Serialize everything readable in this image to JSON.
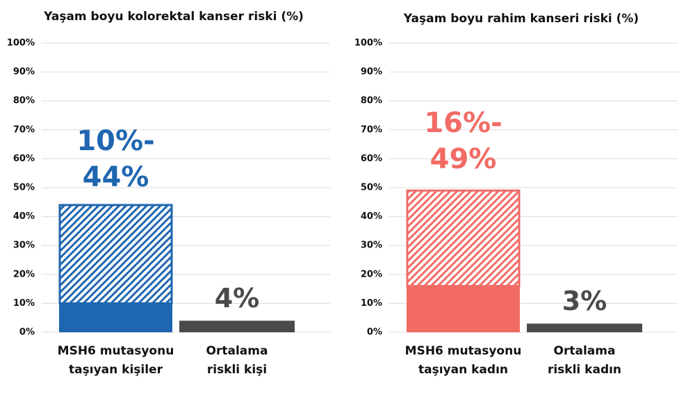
{
  "chart_data": [
    {
      "type": "range-bar",
      "title": "Yaşam boyu kolorektal kanser riski (%)",
      "categories": [
        [
          "MSH6 mutasyonu",
          "taşıyan kişiler"
        ],
        [
          "Ortalama",
          "riskli kişi"
        ]
      ],
      "values": [
        [
          10,
          44
        ],
        4
      ],
      "value_labels": [
        [
          "10%-",
          "44%"
        ],
        "4%"
      ],
      "colors": [
        "#1f66b0",
        "#4a4a4a"
      ],
      "ylim": [
        0,
        100
      ],
      "yticks": [
        {
          "value": 0,
          "label": "0%"
        },
        {
          "value": 10,
          "label": "10%"
        },
        {
          "value": 20,
          "label": "20%"
        },
        {
          "value": 30,
          "label": "30%"
        },
        {
          "value": 40,
          "label": "40%"
        },
        {
          "value": 50,
          "label": "50%"
        },
        {
          "value": 60,
          "label": "60%"
        },
        {
          "value": 70,
          "label": "70%"
        },
        {
          "value": 80,
          "label": "80%"
        },
        {
          "value": 90,
          "label": "90%"
        },
        {
          "value": 100,
          "label": "100%"
        }
      ],
      "grid": true
    },
    {
      "type": "range-bar",
      "title": "Yaşam boyu rahim kanseri riski (%)",
      "categories": [
        [
          "MSH6 mutasyonu",
          "taşıyan kadın"
        ],
        [
          "Ortalama",
          "riskli kadın"
        ]
      ],
      "values": [
        [
          16,
          49
        ],
        3
      ],
      "value_labels": [
        [
          "16%-",
          "49%"
        ],
        "3%"
      ],
      "colors": [
        "#f26b65",
        "#4a4a4a"
      ],
      "ylim": [
        0,
        100
      ],
      "yticks": [
        {
          "value": 0,
          "label": "0%"
        },
        {
          "value": 10,
          "label": "10%"
        },
        {
          "value": 20,
          "label": "20%"
        },
        {
          "value": 30,
          "label": "30%"
        },
        {
          "value": 40,
          "label": "40%"
        },
        {
          "value": 50,
          "label": "50%"
        },
        {
          "value": 60,
          "label": "60%"
        },
        {
          "value": 70,
          "label": "70%"
        },
        {
          "value": 80,
          "label": "80%"
        },
        {
          "value": 90,
          "label": "90%"
        },
        {
          "value": 100,
          "label": "100%"
        }
      ],
      "grid": true
    }
  ]
}
